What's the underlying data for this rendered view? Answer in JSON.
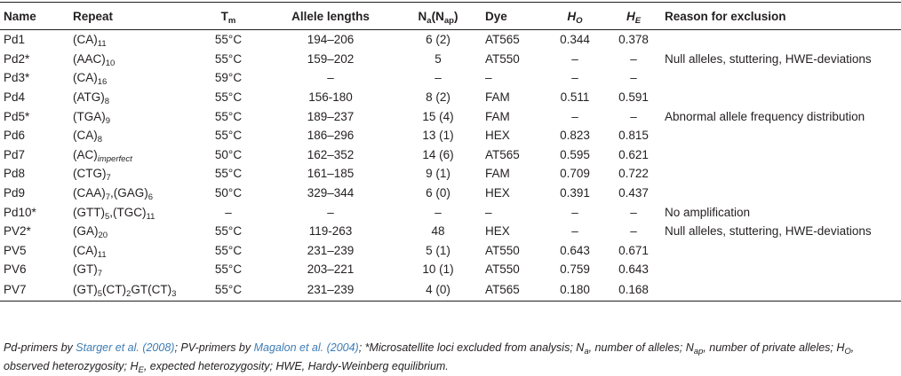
{
  "headers": {
    "name": "Name",
    "repeat": "Repeat",
    "tm_main": "T",
    "tm_sub": "m",
    "allele": "Allele lengths",
    "na_1": "N",
    "na_1s": "a",
    "na_2": "(N",
    "na_2s": "ap",
    "na_3": ")",
    "dye": "Dye",
    "ho_main": "H",
    "ho_sub": "O",
    "he_main": "H",
    "he_sub": "E",
    "reason": "Reason for exclusion"
  },
  "rows": [
    {
      "name": "Pd1",
      "repeat": [
        [
          "(CA)",
          "11"
        ]
      ],
      "tm": "55°C",
      "allele": "194–206",
      "na": "6 (2)",
      "dye": "AT565",
      "ho": "0.344",
      "he": "0.378",
      "reason": ""
    },
    {
      "name": "Pd2*",
      "repeat": [
        [
          "(AAC)",
          "10"
        ]
      ],
      "tm": "55°C",
      "allele": "159–202",
      "na": "5",
      "dye": "AT550",
      "ho": "–",
      "he": "–",
      "reason": "Null alleles, stuttering, HWE-deviations"
    },
    {
      "name": "Pd3*",
      "repeat": [
        [
          "(CA)",
          "16"
        ]
      ],
      "tm": "59°C",
      "allele": "–",
      "na": "–",
      "dye": "–",
      "ho": "–",
      "he": "–",
      "reason": ""
    },
    {
      "name": "Pd4",
      "repeat": [
        [
          "(ATG)",
          "8"
        ]
      ],
      "tm": "55°C",
      "allele": "156-180",
      "na": "8 (2)",
      "dye": "FAM",
      "ho": "0.511",
      "he": "0.591",
      "reason": ""
    },
    {
      "name": "Pd5*",
      "repeat": [
        [
          "(TGA)",
          "9"
        ]
      ],
      "tm": "55°C",
      "allele": "189–237",
      "na": "15 (4)",
      "dye": "FAM",
      "ho": "–",
      "he": "–",
      "reason": "Abnormal allele frequency distribution"
    },
    {
      "name": "Pd6",
      "repeat": [
        [
          "(CA)",
          "8"
        ]
      ],
      "tm": "55°C",
      "allele": "186–296",
      "na": "13 (1)",
      "dye": "HEX",
      "ho": "0.823",
      "he": "0.815",
      "reason": ""
    },
    {
      "name": "Pd7",
      "repeat": [
        [
          "(AC)",
          "imperfect"
        ]
      ],
      "tm": "50°C",
      "allele": "162–352",
      "na": "14 (6)",
      "dye": "AT565",
      "ho": "0.595",
      "he": "0.621",
      "reason": ""
    },
    {
      "name": "Pd8",
      "repeat": [
        [
          "(CTG)",
          "7"
        ]
      ],
      "tm": "55°C",
      "allele": "161–185",
      "na": "9 (1)",
      "dye": "FAM",
      "ho": "0.709",
      "he": "0.722",
      "reason": ""
    },
    {
      "name": "Pd9",
      "repeat": [
        [
          "(CAA)",
          "7"
        ],
        [
          ",(GAG)",
          "6"
        ]
      ],
      "tm": "50°C",
      "allele": "329–344",
      "na": "6 (0)",
      "dye": "HEX",
      "ho": "0.391",
      "he": "0.437",
      "reason": ""
    },
    {
      "name": "Pd10*",
      "repeat": [
        [
          "(GTT)",
          "5"
        ],
        [
          ",(TGC)",
          "11"
        ]
      ],
      "tm": "–",
      "allele": "–",
      "na": "–",
      "dye": "–",
      "ho": "–",
      "he": "–",
      "reason": "No amplification"
    },
    {
      "name": "PV2*",
      "repeat": [
        [
          "(GA)",
          "20"
        ]
      ],
      "tm": "55°C",
      "allele": "119-263",
      "na": "48",
      "dye": "HEX",
      "ho": "–",
      "he": "–",
      "reason": "Null alleles, stuttering, HWE-deviations"
    },
    {
      "name": "PV5",
      "repeat": [
        [
          "(CA)",
          "11"
        ]
      ],
      "tm": "55°C",
      "allele": "231–239",
      "na": "5 (1)",
      "dye": "AT550",
      "ho": "0.643",
      "he": "0.671",
      "reason": ""
    },
    {
      "name": "PV6",
      "repeat": [
        [
          "(GT)",
          "7"
        ]
      ],
      "tm": "55°C",
      "allele": "203–221",
      "na": "10 (1)",
      "dye": "AT550",
      "ho": "0.759",
      "he": "0.643",
      "reason": ""
    },
    {
      "name": "PV7",
      "repeat": [
        [
          "(GT)",
          "5"
        ],
        [
          "(CT)",
          "2"
        ],
        [
          "GT(CT)",
          "3"
        ]
      ],
      "tm": "55°C",
      "allele": "231–239",
      "na": "4 (0)",
      "dye": "AT565",
      "ho": "0.180",
      "he": "0.168",
      "reason": ""
    }
  ],
  "footnote": {
    "s1": "Pd-primers by ",
    "c1": "Starger et al. (2008)",
    "s2": "; PV-primers by ",
    "c2": "Magalon et al. (2004)",
    "s3": "; *Microsatellite loci excluded from analysis; N",
    "s3sub": "a",
    "s4": ", number of alleles; N",
    "s4sub": "ap",
    "s5": ", number of private alleles; H",
    "s5sub": "O",
    "s6": ", observed heterozygosity; H",
    "s6sub": "E",
    "s7": ", expected heterozygosity; HWE, Hardy-Weinberg equilibrium."
  },
  "colors": {
    "text": "#231f20",
    "citation": "#3d7cb4",
    "rule": "#231f20"
  }
}
